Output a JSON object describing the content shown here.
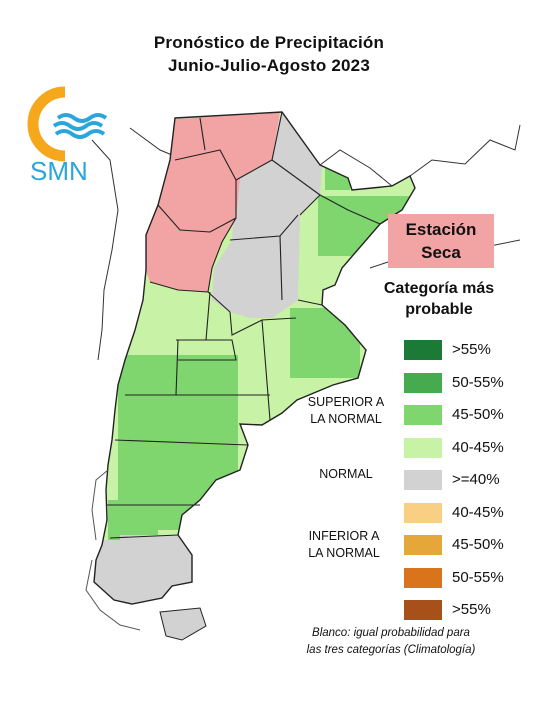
{
  "title_line1": "Pronóstico de Precipitación",
  "title_line2": "Junio-Julio-Agosto 2023",
  "logo_text": "SMN",
  "season_label": [
    "Estación",
    "Seca"
  ],
  "legend": {
    "title": [
      "Categoría más",
      "probable"
    ],
    "groups": {
      "above": [
        "SUPERIOR A",
        "LA NORMAL"
      ],
      "normal": "NORMAL",
      "below": [
        "INFERIOR A",
        "LA NORMAL"
      ]
    },
    "items": [
      {
        "label": ">55%",
        "color": "#1b7a35",
        "group": "above"
      },
      {
        "label": "50-55%",
        "color": "#45ab4e",
        "group": "above"
      },
      {
        "label": "45-50%",
        "color": "#7fd66e",
        "group": "above"
      },
      {
        "label": "40-45%",
        "color": "#c8f2a6",
        "group": "above"
      },
      {
        "label": ">=40%",
        "color": "#d2d2d2",
        "group": "normal"
      },
      {
        "label": "40-45%",
        "color": "#f9cf84",
        "group": "below"
      },
      {
        "label": "45-50%",
        "color": "#e5a63a",
        "group": "below"
      },
      {
        "label": "50-55%",
        "color": "#d9741c",
        "group": "below"
      },
      {
        "label": ">55%",
        "color": "#a8501a",
        "group": "below"
      }
    ]
  },
  "footnote": [
    "Blanco: igual probabilidad para",
    "las tres categorías (Climatología)"
  ],
  "colors": {
    "dry_season": "#f2a3a3",
    "logo_orange": "#f5a81c",
    "logo_blue": "#2aa6dd",
    "border": "#222222"
  }
}
